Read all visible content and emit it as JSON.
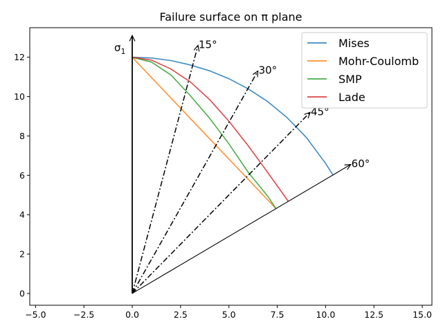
{
  "chart_data": {
    "type": "line",
    "title": "Failure surface on π plane",
    "xlabel": "",
    "ylabel": "",
    "xlim": [
      -5.3,
      15.5
    ],
    "ylim": [
      -0.6,
      13.5
    ],
    "xticks": [
      -5.0,
      -2.5,
      0.0,
      2.5,
      5.0,
      7.5,
      10.0,
      12.5,
      15.0
    ],
    "xtick_labels": [
      "−5.0",
      "−2.5",
      "0.0",
      "2.5",
      "5.0",
      "7.5",
      "10.0",
      "12.5",
      "15.0"
    ],
    "yticks": [
      0,
      2,
      4,
      6,
      8,
      10,
      12
    ],
    "ytick_labels": [
      "0",
      "2",
      "4",
      "6",
      "8",
      "10",
      "12"
    ],
    "grid": false,
    "legend_position": "top-right",
    "series": [
      {
        "name": "Mises",
        "color": "#1f77b4",
        "x": [
          0.0,
          1.0,
          2.0,
          3.0,
          4.0,
          5.0,
          6.0,
          7.0,
          8.0,
          9.0,
          10.0,
          10.39
        ],
        "y": [
          12.0,
          11.96,
          11.83,
          11.61,
          11.31,
          10.91,
          10.39,
          9.75,
          8.94,
          7.93,
          6.6,
          6.0
        ]
      },
      {
        "name": "Mohr-Coulomb",
        "color": "#ff7f0e",
        "x": [
          0.0,
          7.44
        ],
        "y": [
          12.0,
          4.3
        ]
      },
      {
        "name": "SMP",
        "color": "#2ca02c",
        "x": [
          0.0,
          1.0,
          2.0,
          3.0,
          4.0,
          5.0,
          6.0,
          7.0,
          7.44
        ],
        "y": [
          12.0,
          11.75,
          11.1,
          10.05,
          8.9,
          7.6,
          6.15,
          4.95,
          4.3
        ]
      },
      {
        "name": "Lade",
        "color": "#d62728",
        "x": [
          0.0,
          1.0,
          2.0,
          3.0,
          4.0,
          5.0,
          6.0,
          7.0,
          8.08
        ],
        "y": [
          12.0,
          11.85,
          11.4,
          10.75,
          9.85,
          8.75,
          7.5,
          6.15,
          4.67
        ]
      }
    ],
    "rays": [
      {
        "label": "15$^{\\circ}$",
        "angle_deg": 15,
        "x_end": 3.4,
        "y_end": 12.6,
        "style": "dashdot",
        "arrow": true
      },
      {
        "label": "30$^{\\circ}$",
        "angle_deg": 30,
        "x_end": 6.5,
        "y_end": 11.3,
        "style": "dashdot",
        "arrow": true
      },
      {
        "label": "45$^{\\circ}$",
        "angle_deg": 45,
        "x_end": 9.2,
        "y_end": 9.2,
        "style": "dashdot",
        "arrow": true
      },
      {
        "label": "60$^{\\circ}$",
        "angle_deg": 60,
        "x_end": 11.3,
        "y_end": 6.55,
        "style": "solid",
        "arrow": true
      },
      {
        "label": "$\\sigma_1$",
        "angle_deg": 0,
        "x_end": 0.0,
        "y_end": 13.1,
        "style": "solid",
        "arrow": true
      }
    ],
    "annotations": {
      "sigma_label": "σ",
      "sigma_sub": "1",
      "ray_labels": [
        "15°",
        "30°",
        "45°",
        "60°"
      ]
    }
  }
}
